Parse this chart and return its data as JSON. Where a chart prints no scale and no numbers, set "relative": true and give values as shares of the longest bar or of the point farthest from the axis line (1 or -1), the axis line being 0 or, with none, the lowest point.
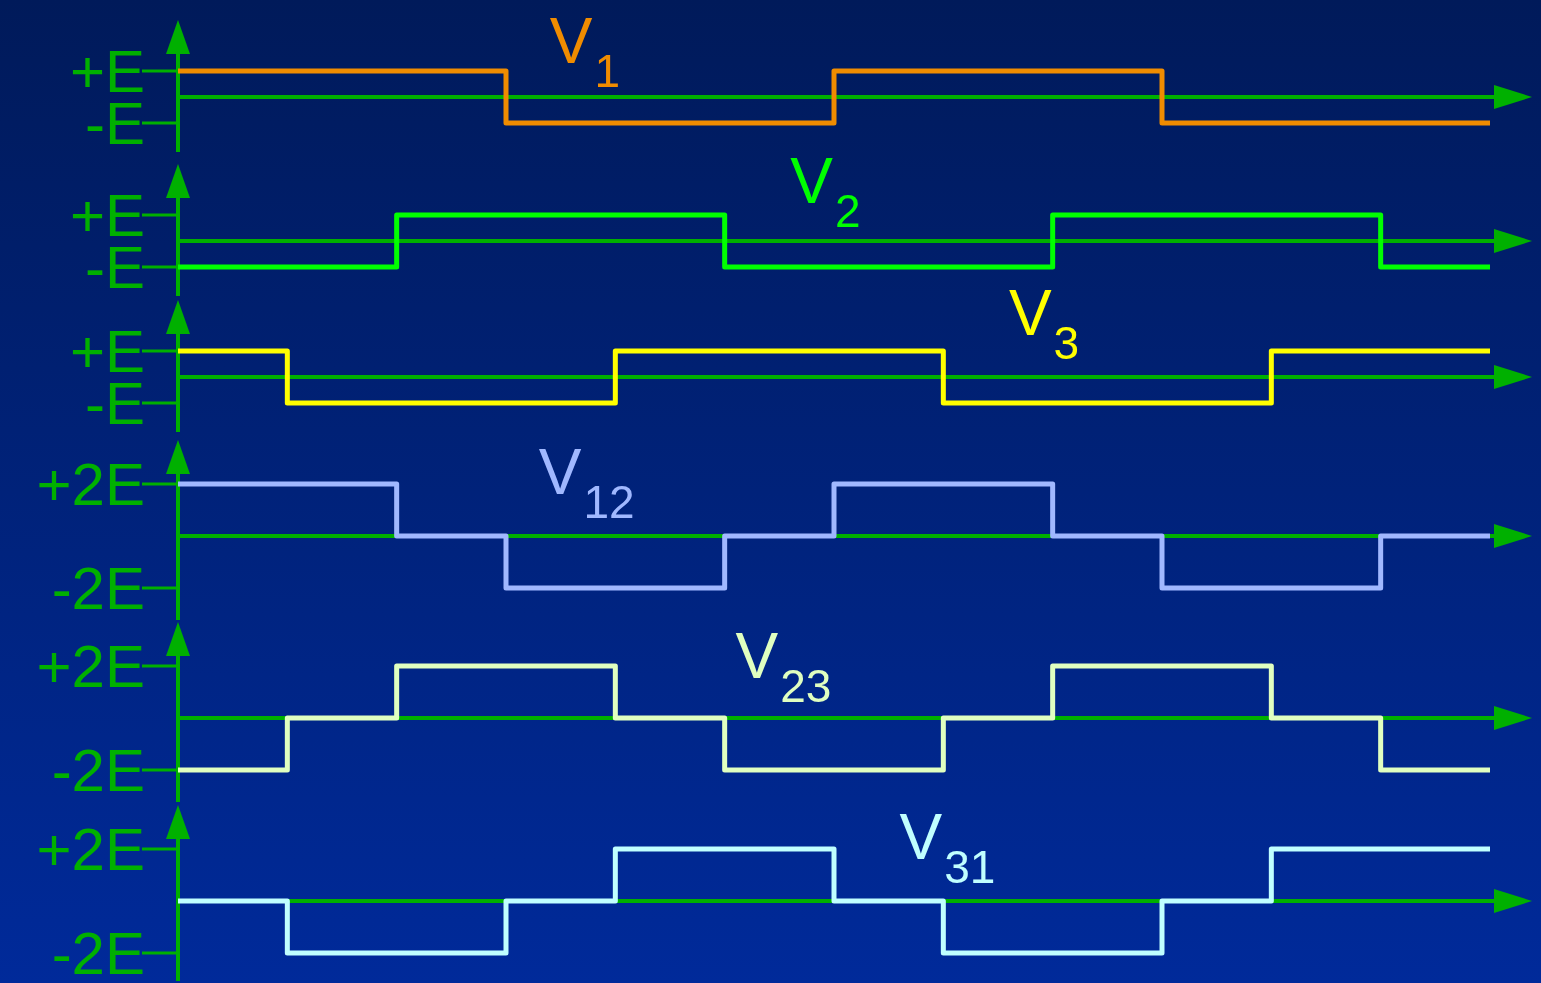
{
  "chart_data": [
    {
      "type": "step",
      "relative": true,
      "categories": [
        null,
        null,
        null,
        null,
        null,
        null,
        null,
        null,
        null,
        null,
        null,
        null,
        null
      ],
      "series": [
        {
          "name": "V$_{1}$",
          "color": "#f08c00",
          "values": [
            1,
            1,
            1,
            -1,
            -1,
            -1,
            1,
            1,
            1,
            -1,
            -1,
            -1,
            -1
          ]
        }
      ],
      "ref_lines": [
        {
          "axis": "y",
          "value": 0,
          "color": "#00b000"
        }
      ],
      "annotations": [
        "+E",
        "-E"
      ]
    },
    {
      "type": "step",
      "relative": true,
      "categories": [
        null,
        null,
        null,
        null,
        null,
        null,
        null,
        null,
        null,
        null,
        null,
        null,
        null
      ],
      "series": [
        {
          "name": "V$_{2}$",
          "color": "#00ff00",
          "values": [
            -1,
            -1,
            1,
            1,
            1,
            -1,
            -1,
            -1,
            1,
            1,
            1,
            -1,
            -1
          ]
        }
      ],
      "ref_lines": [
        {
          "axis": "y",
          "value": 0,
          "color": "#00b000"
        }
      ],
      "annotations": [
        "+E",
        "-E"
      ]
    },
    {
      "type": "step",
      "relative": true,
      "categories": [
        null,
        null,
        null,
        null,
        null,
        null,
        null,
        null,
        null,
        null,
        null,
        null,
        null
      ],
      "series": [
        {
          "name": "V$_{3}$",
          "color": "#ffff00",
          "values": [
            1,
            -1,
            -1,
            -1,
            1,
            1,
            1,
            -1,
            -1,
            -1,
            1,
            1,
            1
          ]
        }
      ],
      "ref_lines": [
        {
          "axis": "y",
          "value": 0,
          "color": "#00b000"
        }
      ],
      "annotations": [
        "+E",
        "-E"
      ]
    },
    {
      "type": "step",
      "relative": true,
      "categories": [
        null,
        null,
        null,
        null,
        null,
        null,
        null,
        null,
        null,
        null,
        null,
        null,
        null
      ],
      "series": [
        {
          "name": "V$_{12}$",
          "color": "#a0b8ff",
          "values": [
            1,
            1,
            0,
            -1,
            -1,
            0,
            1,
            1,
            0,
            -1,
            -1,
            0,
            0
          ]
        }
      ],
      "ref_lines": [
        {
          "axis": "y",
          "value": 0,
          "color": "#00b000"
        }
      ],
      "annotations": [
        "+2E",
        "-2E"
      ]
    },
    {
      "type": "step",
      "relative": true,
      "categories": [
        null,
        null,
        null,
        null,
        null,
        null,
        null,
        null,
        null,
        null,
        null,
        null,
        null
      ],
      "series": [
        {
          "name": "V$_{23}$",
          "color": "#e0ffc0",
          "values": [
            -1,
            0,
            1,
            1,
            0,
            -1,
            -1,
            0,
            1,
            1,
            0,
            -1,
            -1
          ]
        }
      ],
      "ref_lines": [
        {
          "axis": "y",
          "value": 0,
          "color": "#00b000"
        }
      ],
      "annotations": [
        "+2E",
        "-2E"
      ]
    },
    {
      "type": "step",
      "relative": true,
      "categories": [
        null,
        null,
        null,
        null,
        null,
        null,
        null,
        null,
        null,
        null,
        null,
        null,
        null
      ],
      "series": [
        {
          "name": "V$_{31}$",
          "color": "#c0ffff",
          "values": [
            0,
            -1,
            -1,
            0,
            1,
            1,
            0,
            -1,
            -1,
            0,
            1,
            1,
            1
          ]
        }
      ],
      "ref_lines": [
        {
          "axis": "y",
          "value": 0,
          "color": "#00b000"
        }
      ],
      "annotations": [
        "+2E",
        "-2E"
      ]
    }
  ]
}
